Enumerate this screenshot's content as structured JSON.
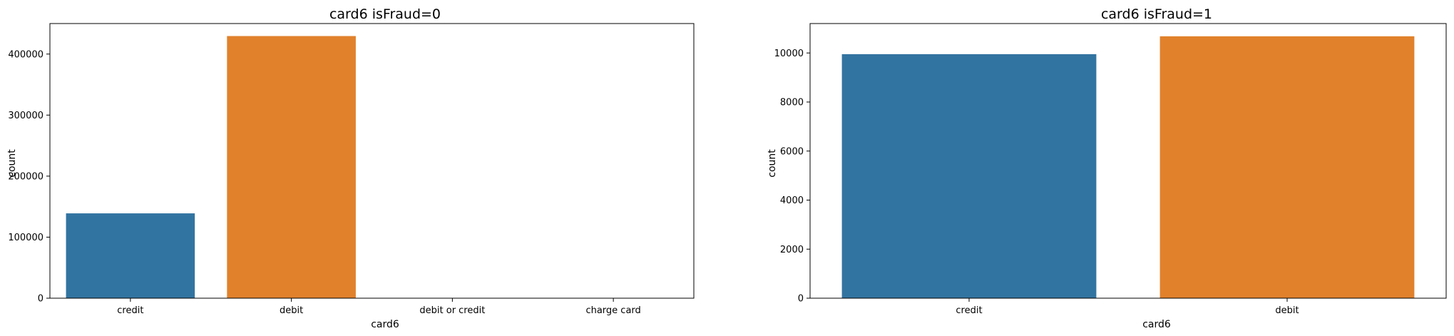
{
  "chart_data": [
    {
      "type": "bar",
      "title": "card6 isFraud=0",
      "xlabel": "card6",
      "ylabel": "count",
      "categories": [
        "credit",
        "debit",
        "debit or credit",
        "charge card"
      ],
      "values": [
        139000,
        429500,
        80,
        15
      ],
      "ylim": [
        0,
        450000
      ],
      "yticks": [
        0,
        100000,
        200000,
        300000,
        400000
      ],
      "ytick_labels": [
        "0",
        "100000",
        "200000",
        "300000",
        "400000"
      ],
      "colors": [
        "#3274a1",
        "#e1812c",
        "#3a923a",
        "#c03d3e"
      ],
      "grid": false
    },
    {
      "type": "bar",
      "title": "card6 isFraud=1",
      "xlabel": "card6",
      "ylabel": "count",
      "categories": [
        "credit",
        "debit"
      ],
      "values": [
        9950,
        10680
      ],
      "ylim": [
        0,
        11200
      ],
      "yticks": [
        0,
        2000,
        4000,
        6000,
        8000,
        10000
      ],
      "ytick_labels": [
        "0",
        "2000",
        "4000",
        "6000",
        "8000",
        "10000"
      ],
      "colors": [
        "#3274a1",
        "#e1812c"
      ],
      "grid": false
    }
  ]
}
